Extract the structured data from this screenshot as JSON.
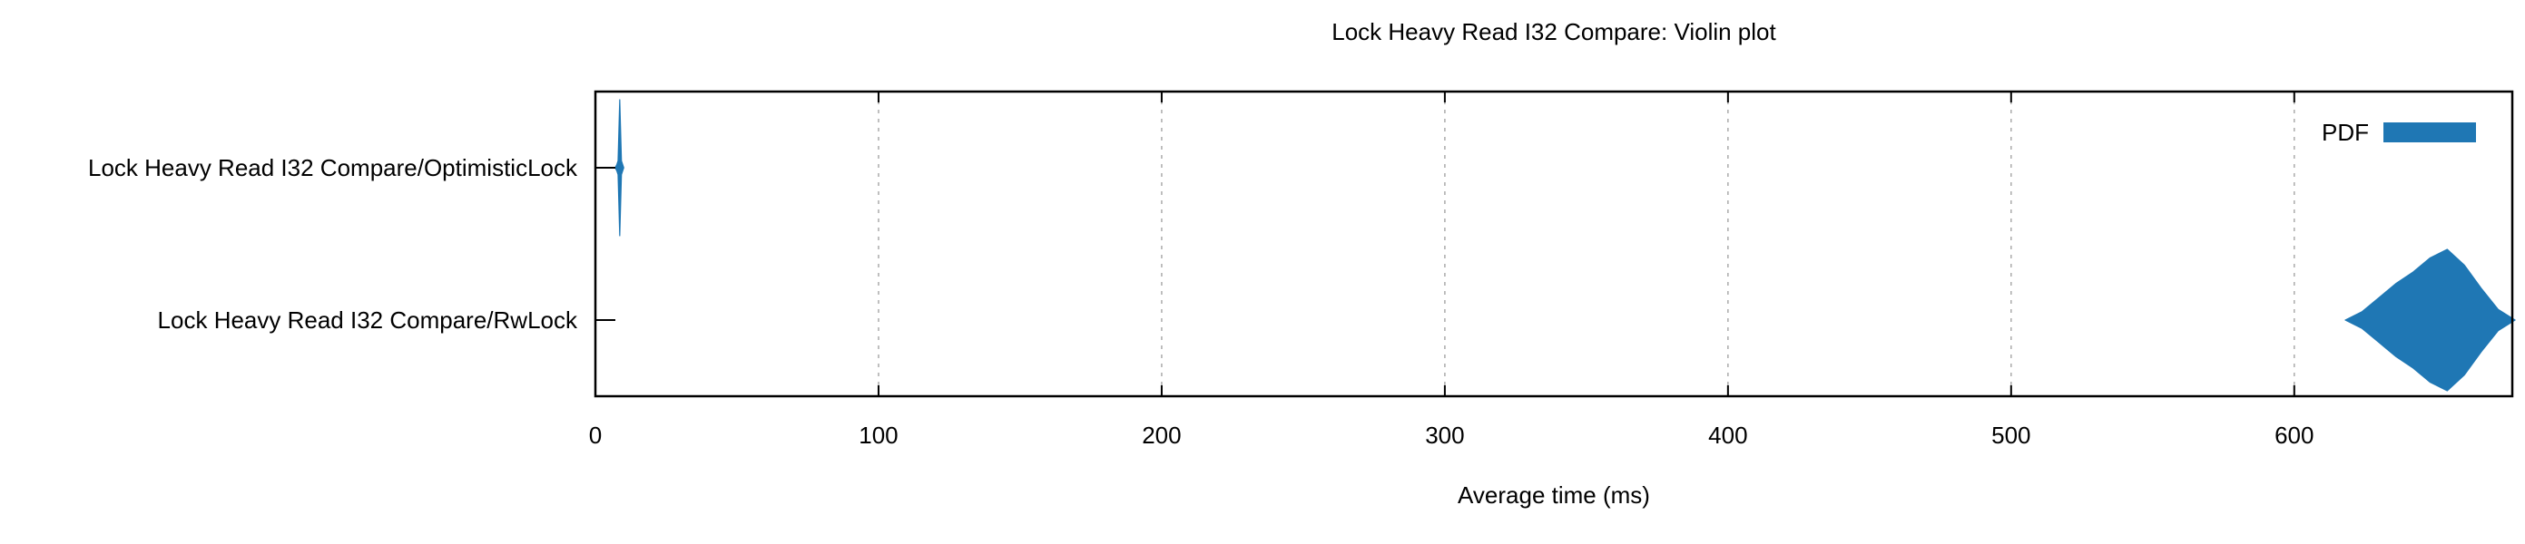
{
  "chart_data": {
    "type": "violin",
    "title": "Lock Heavy Read I32 Compare: Violin plot",
    "xlabel": "Average time (ms)",
    "ylabel": "",
    "xlim": [
      0,
      677
    ],
    "x_ticks": [
      "0",
      "100",
      "200",
      "300",
      "400",
      "500",
      "600"
    ],
    "x_tick_values": [
      0,
      100,
      200,
      300,
      400,
      500,
      600
    ],
    "grid": "vertical dashed",
    "legend": {
      "position": "top-right",
      "entries": [
        "PDF"
      ]
    },
    "colors": {
      "violin": "#1f77b4",
      "grid": "#aaaaaa",
      "axis": "#000000"
    },
    "categories": [
      "Lock Heavy Read I32 Compare/OptimisticLock",
      "Lock Heavy Read I32 Compare/RwLock"
    ],
    "series": [
      {
        "name": "PDF",
        "distributions": [
          {
            "category": "Lock Heavy Read I32 Compare/OptimisticLock",
            "x": [
              7.0,
              7.6,
              8.0,
              8.3,
              8.6,
              8.9,
              9.2,
              9.6,
              10.0
            ],
            "density": [
              0.0,
              0.05,
              0.1,
              0.55,
              1.0,
              0.55,
              0.1,
              0.05,
              0.0
            ]
          },
          {
            "category": "Lock Heavy Read I32 Compare/RwLock",
            "x": [
              618,
              624,
              630,
              636,
              642,
              648,
              654,
              660,
              666,
              672,
              678
            ],
            "density": [
              0.0,
              0.12,
              0.32,
              0.52,
              0.68,
              0.88,
              1.0,
              0.78,
              0.45,
              0.15,
              0.0
            ]
          }
        ]
      }
    ]
  }
}
